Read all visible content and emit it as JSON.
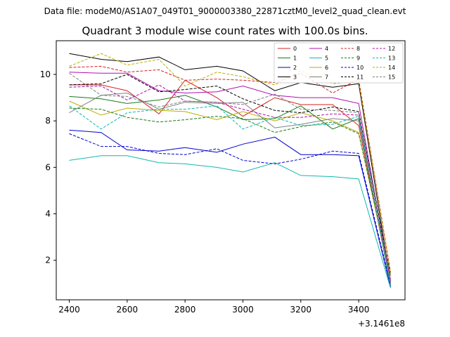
{
  "chart_data": {
    "type": "line",
    "suptitle": "Data file: modeM0/AS1A07_049T01_9000003380_22871cztM0_level2_quad_clean.evt",
    "title": "Quadrant 3 module wise count rates with 100.0s bins.",
    "xlabel": "",
    "ylabel": "",
    "x_offset_label": "+3.1461e8",
    "x": [
      2400,
      2510,
      2600,
      2710,
      2800,
      2910,
      3000,
      3110,
      3200,
      3310,
      3400,
      3510
    ],
    "xlim": [
      2355,
      3560
    ],
    "ylim": [
      0.3,
      11.45
    ],
    "xticks": [
      2400,
      2600,
      2800,
      3000,
      3200,
      3400
    ],
    "yticks": [
      2,
      4,
      6,
      8,
      10
    ],
    "grid": false,
    "legend_position": "top-right",
    "series": [
      {
        "name": "0",
        "color": "#d62020",
        "dash": "solid",
        "values": [
          9.55,
          9.55,
          9.3,
          8.3,
          9.75,
          9.0,
          8.2,
          9.0,
          8.7,
          8.7,
          7.8,
          1.0
        ]
      },
      {
        "name": "1",
        "color": "#1a7a1a",
        "dash": "solid",
        "values": [
          9.05,
          8.95,
          8.75,
          8.9,
          9.1,
          8.6,
          8.05,
          8.1,
          8.65,
          7.65,
          8.1,
          0.9
        ]
      },
      {
        "name": "2",
        "color": "#0000d0",
        "dash": "solid",
        "values": [
          7.6,
          7.5,
          6.75,
          6.7,
          6.85,
          6.65,
          7.0,
          7.3,
          6.55,
          6.55,
          6.5,
          0.85
        ]
      },
      {
        "name": "3",
        "color": "#000000",
        "dash": "solid",
        "values": [
          10.9,
          10.65,
          10.55,
          10.75,
          10.2,
          10.35,
          10.15,
          9.3,
          9.65,
          9.45,
          9.6,
          1.1
        ]
      },
      {
        "name": "4",
        "color": "#b010b0",
        "dash": "solid",
        "values": [
          10.1,
          10.05,
          10.05,
          9.3,
          9.2,
          9.25,
          9.5,
          9.1,
          9.0,
          9.0,
          8.75,
          1.05
        ]
      },
      {
        "name": "5",
        "color": "#10b8b0",
        "dash": "solid",
        "values": [
          6.3,
          6.5,
          6.5,
          6.2,
          6.15,
          6.0,
          5.8,
          6.2,
          5.65,
          5.6,
          5.5,
          0.8
        ]
      },
      {
        "name": "6",
        "color": "#b8b000",
        "dash": "solid",
        "values": [
          8.85,
          8.25,
          8.55,
          8.45,
          8.4,
          8.05,
          8.4,
          8.0,
          8.35,
          8.0,
          7.5,
          1.2
        ]
      },
      {
        "name": "7",
        "color": "#808080",
        "dash": "solid",
        "values": [
          8.35,
          9.1,
          9.2,
          8.5,
          8.8,
          8.75,
          8.8,
          7.7,
          7.85,
          8.1,
          8.0,
          1.0
        ]
      },
      {
        "name": "8",
        "color": "#d62020",
        "dash": "dashed",
        "values": [
          10.3,
          10.35,
          10.1,
          10.2,
          9.75,
          9.8,
          9.75,
          9.65,
          10.05,
          9.2,
          9.8,
          1.5
        ]
      },
      {
        "name": "9",
        "color": "#1a7a1a",
        "dash": "dashed",
        "values": [
          8.55,
          8.5,
          8.15,
          7.95,
          8.05,
          8.2,
          8.1,
          7.5,
          7.75,
          7.95,
          7.45,
          1.4
        ]
      },
      {
        "name": "10",
        "color": "#0000d0",
        "dash": "dashed",
        "values": [
          7.45,
          6.9,
          6.9,
          6.6,
          6.55,
          6.8,
          6.3,
          6.15,
          6.35,
          6.7,
          6.6,
          0.95
        ]
      },
      {
        "name": "11",
        "color": "#000000",
        "dash": "dashed",
        "values": [
          9.55,
          9.6,
          10.0,
          9.25,
          9.35,
          9.5,
          8.95,
          8.45,
          8.35,
          8.6,
          8.4,
          1.35
        ]
      },
      {
        "name": "12",
        "color": "#b010b0",
        "dash": "dashed",
        "values": [
          9.45,
          9.5,
          8.9,
          9.55,
          8.85,
          8.8,
          8.5,
          8.15,
          8.15,
          8.3,
          8.25,
          1.15
        ]
      },
      {
        "name": "13",
        "color": "#10b8b0",
        "dash": "dashed",
        "values": [
          8.65,
          7.65,
          8.35,
          8.5,
          8.5,
          8.65,
          7.65,
          8.15,
          7.8,
          7.85,
          8.2,
          0.9
        ]
      },
      {
        "name": "14",
        "color": "#b8b000",
        "dash": "dashed",
        "values": [
          10.35,
          10.9,
          10.4,
          10.65,
          9.5,
          10.1,
          9.9,
          9.55,
          10.15,
          9.6,
          9.7,
          1.45
        ]
      },
      {
        "name": "15",
        "color": "#808080",
        "dash": "dashed",
        "values": [
          10.05,
          9.1,
          9.05,
          8.6,
          8.85,
          8.8,
          8.7,
          9.15,
          8.5,
          8.45,
          8.35,
          1.3
        ]
      }
    ]
  }
}
